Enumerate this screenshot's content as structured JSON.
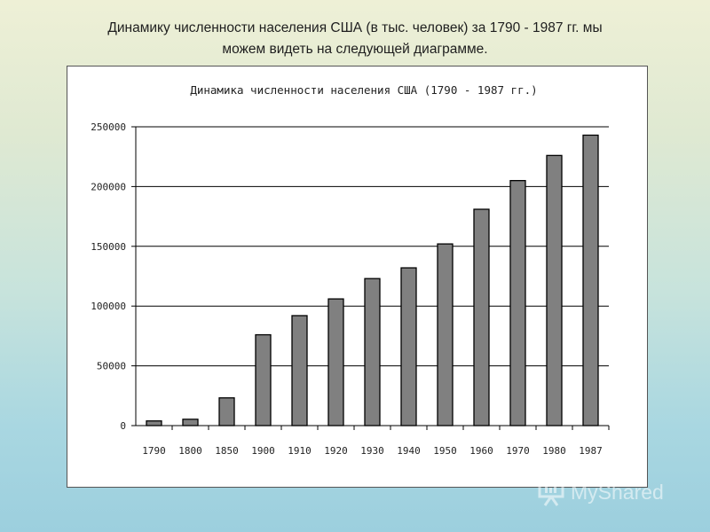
{
  "slide": {
    "title_line1": "Динамику численности населения США (в тыс. человек) за 1790 - 1987 гг. мы",
    "title_line2": "можем видеть на следующей диаграмме."
  },
  "chart_data": {
    "type": "bar",
    "title": "Динамика численности населения США (1790 - 1987 гг.)",
    "xlabel": "",
    "ylabel": "",
    "categories": [
      "1790",
      "1800",
      "1850",
      "1900",
      "1910",
      "1920",
      "1930",
      "1940",
      "1950",
      "1960",
      "1970",
      "1980",
      "1987"
    ],
    "values": [
      3900,
      5300,
      23200,
      76000,
      92000,
      106000,
      123000,
      132000,
      152000,
      181000,
      205000,
      226000,
      243000
    ],
    "ylim": [
      0,
      250000
    ],
    "yticks": [
      0,
      50000,
      100000,
      150000,
      200000,
      250000
    ],
    "grid": true,
    "legend": "none",
    "bar_color": "#808080"
  },
  "watermark": {
    "text": "MyShared"
  }
}
